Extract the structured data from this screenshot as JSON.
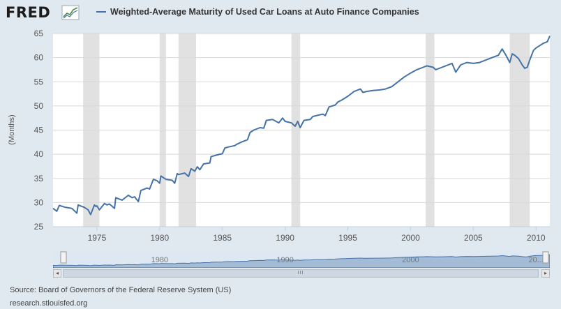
{
  "header": {
    "logo_text": "FRED",
    "logo_icon": "trend-chart-icon",
    "series_title": "Weighted-Average Maturity of Used Car Loans at Auto Finance Companies"
  },
  "colors": {
    "line": "#4572a7",
    "recession": "#e1e1e1",
    "background": "#e1e9f0",
    "plot": "#ffffff"
  },
  "chart_data": {
    "type": "line",
    "title": "Weighted-Average Maturity of Used Car Loans at Auto Finance Companies",
    "ylabel": "(Months)",
    "xlabel": "",
    "ylim": [
      25,
      65
    ],
    "xlim": [
      1971.5,
      2011.1
    ],
    "yticks": [
      25,
      30,
      35,
      40,
      45,
      50,
      55,
      60,
      65
    ],
    "xticks": [
      1975,
      1980,
      1985,
      1990,
      1995,
      2000,
      2005,
      2010
    ],
    "grid": "horizontal",
    "recessions": [
      [
        1973.9,
        1975.2
      ],
      [
        1980.0,
        1980.5
      ],
      [
        1981.5,
        1982.9
      ],
      [
        1990.5,
        1991.2
      ],
      [
        2001.2,
        2001.9
      ],
      [
        2007.9,
        2009.5
      ]
    ],
    "series": [
      {
        "name": "Weighted-Average Maturity of Used Car Loans at Auto Finance Companies",
        "x": [
          1971.5,
          1971.8,
          1972.0,
          1972.5,
          1973.0,
          1973.4,
          1973.5,
          1974.0,
          1974.3,
          1974.5,
          1974.8,
          1974.9,
          1975.0,
          1975.2,
          1975.6,
          1975.8,
          1976.0,
          1976.4,
          1976.5,
          1977.0,
          1977.5,
          1977.8,
          1978.0,
          1978.3,
          1978.5,
          1979.0,
          1979.2,
          1979.5,
          1979.8,
          1980.0,
          1980.1,
          1980.5,
          1981.0,
          1981.2,
          1981.4,
          1981.5,
          1982.0,
          1982.3,
          1982.5,
          1982.8,
          1983.0,
          1983.2,
          1983.5,
          1984.0,
          1984.1,
          1984.5,
          1984.8,
          1985.0,
          1985.2,
          1985.5,
          1986.0,
          1986.1,
          1986.5,
          1987.0,
          1987.2,
          1987.5,
          1988.0,
          1988.3,
          1988.5,
          1989.0,
          1989.5,
          1989.8,
          1990.0,
          1990.5,
          1990.8,
          1991.0,
          1991.2,
          1991.5,
          1992.0,
          1992.2,
          1992.5,
          1993.0,
          1993.2,
          1993.5,
          1994.0,
          1994.2,
          1994.5,
          1995.0,
          1995.5,
          1996.0,
          1996.2,
          1996.5,
          1997.0,
          1997.5,
          1998.0,
          1998.5,
          1999.0,
          1999.5,
          2000.0,
          2000.5,
          2001.0,
          2001.3,
          2001.8,
          2002.0,
          2002.5,
          2003.0,
          2003.3,
          2003.6,
          2004.0,
          2004.5,
          2005.0,
          2005.5,
          2006.0,
          2006.5,
          2007.0,
          2007.3,
          2007.6,
          2007.9,
          2008.1,
          2008.3,
          2008.6,
          2008.9,
          2009.1,
          2009.3,
          2009.5,
          2009.8,
          2010.0,
          2010.3,
          2010.6,
          2010.9,
          2011.1
        ],
        "values": [
          28.8,
          28.2,
          29.4,
          29.0,
          28.8,
          27.8,
          29.5,
          29.0,
          28.5,
          27.5,
          29.5,
          29.2,
          29.3,
          28.5,
          29.8,
          29.5,
          29.7,
          28.8,
          31.0,
          30.5,
          31.5,
          31.0,
          31.2,
          30.2,
          32.5,
          33.0,
          32.8,
          34.8,
          34.5,
          34.0,
          35.5,
          34.8,
          34.6,
          34.0,
          36.0,
          35.8,
          36.1,
          35.4,
          37.0,
          36.5,
          37.4,
          36.8,
          38.0,
          38.2,
          39.5,
          39.8,
          40.0,
          40.1,
          41.3,
          41.5,
          41.8,
          42.0,
          42.5,
          43.0,
          44.5,
          45.0,
          45.5,
          45.4,
          47.0,
          47.2,
          46.5,
          47.5,
          46.8,
          46.5,
          45.8,
          46.8,
          45.5,
          47.0,
          47.2,
          47.8,
          48.0,
          48.3,
          48.0,
          49.8,
          50.2,
          50.8,
          51.2,
          52.0,
          53.0,
          53.5,
          52.8,
          53.0,
          53.2,
          53.3,
          53.5,
          54.0,
          55.0,
          56.0,
          56.8,
          57.5,
          58.0,
          58.3,
          58.0,
          57.5,
          58.0,
          58.5,
          58.8,
          57.0,
          58.5,
          59.0,
          58.8,
          59.0,
          59.5,
          60.0,
          60.5,
          61.8,
          60.5,
          59.0,
          60.8,
          60.5,
          59.8,
          58.5,
          57.8,
          58.0,
          59.5,
          61.5,
          62.0,
          62.5,
          63.0,
          63.3,
          64.5
        ]
      }
    ],
    "navigator_labels": [
      "1980",
      "1990",
      "2000",
      "20..."
    ]
  },
  "footer": {
    "source": "Source: Board of Governors of the Federal Reserve System (US)",
    "url": "research.stlouisfed.org"
  },
  "navigator": {
    "left_arrow": "◂",
    "right_arrow": "▸",
    "grip": "III"
  }
}
